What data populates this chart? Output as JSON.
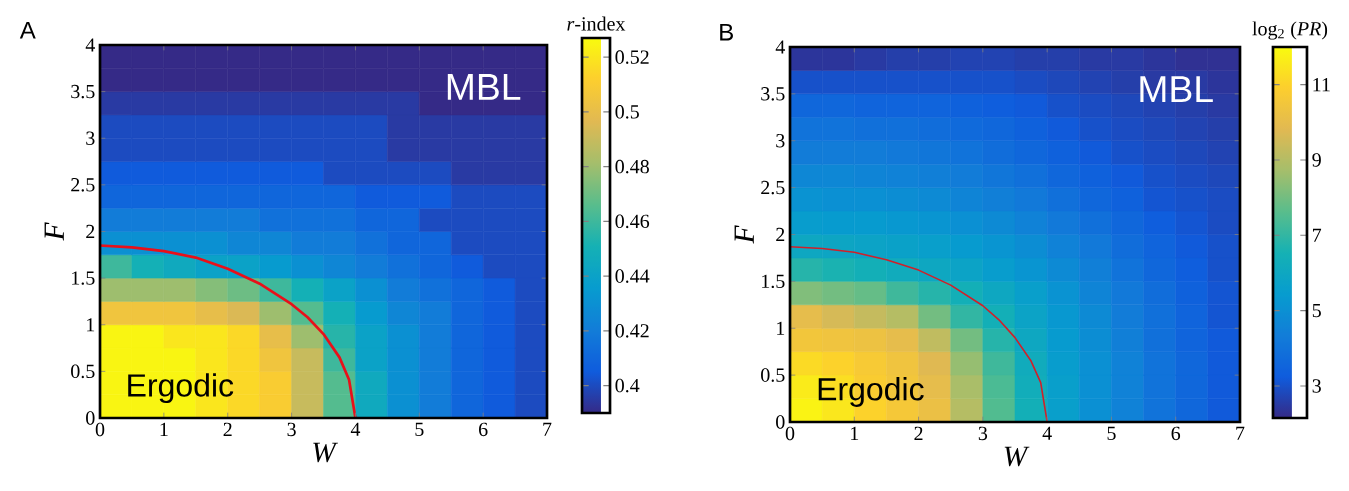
{
  "chart_data": [
    {
      "type": "heatmap",
      "title": "A",
      "xlabel": "W",
      "ylabel": "F",
      "clabel": "*r*-index",
      "xlim": [
        0,
        7
      ],
      "xticks": [
        0,
        1,
        2,
        3,
        4,
        5,
        6,
        7
      ],
      "ylim": [
        0,
        4
      ],
      "yticks": [
        0,
        0.5,
        1,
        1.5,
        2,
        2.5,
        3,
        3.5,
        4
      ],
      "clim": [
        0.39,
        0.527
      ],
      "cticks": [
        0.4,
        0.42,
        0.44,
        0.46,
        0.48,
        0.5,
        0.52
      ],
      "cells": [
        [
          0.39,
          0.39,
          0.39,
          0.39,
          0.39,
          0.39,
          0.39,
          0.39,
          0.39,
          0.39,
          0.39,
          0.39,
          0.39,
          0.39
        ],
        [
          0.39,
          0.39,
          0.39,
          0.39,
          0.39,
          0.39,
          0.39,
          0.39,
          0.39,
          0.39,
          0.39,
          0.39,
          0.39,
          0.39
        ],
        [
          0.395,
          0.395,
          0.395,
          0.395,
          0.395,
          0.395,
          0.395,
          0.395,
          0.395,
          0.395,
          0.39,
          0.39,
          0.39,
          0.39
        ],
        [
          0.4,
          0.4,
          0.4,
          0.4,
          0.4,
          0.4,
          0.4,
          0.4,
          0.4,
          0.395,
          0.395,
          0.395,
          0.395,
          0.395
        ],
        [
          0.4,
          0.4,
          0.4,
          0.4,
          0.4,
          0.4,
          0.4,
          0.4,
          0.4,
          0.395,
          0.395,
          0.395,
          0.395,
          0.395
        ],
        [
          0.405,
          0.405,
          0.405,
          0.405,
          0.405,
          0.405,
          0.405,
          0.4,
          0.4,
          0.4,
          0.4,
          0.395,
          0.395,
          0.395
        ],
        [
          0.41,
          0.41,
          0.41,
          0.41,
          0.41,
          0.41,
          0.41,
          0.41,
          0.405,
          0.405,
          0.405,
          0.4,
          0.4,
          0.4
        ],
        [
          0.42,
          0.42,
          0.42,
          0.42,
          0.42,
          0.415,
          0.415,
          0.415,
          0.41,
          0.41,
          0.4,
          0.4,
          0.4,
          0.4
        ],
        [
          0.43,
          0.43,
          0.43,
          0.43,
          0.425,
          0.425,
          0.42,
          0.42,
          0.415,
          0.41,
          0.41,
          0.4,
          0.4,
          0.4
        ],
        [
          0.46,
          0.45,
          0.445,
          0.44,
          0.44,
          0.435,
          0.43,
          0.425,
          0.42,
          0.415,
          0.41,
          0.405,
          0.4,
          0.4
        ],
        [
          0.48,
          0.48,
          0.48,
          0.475,
          0.47,
          0.46,
          0.45,
          0.44,
          0.43,
          0.42,
          0.415,
          0.41,
          0.405,
          0.4
        ],
        [
          0.505,
          0.505,
          0.505,
          0.5,
          0.495,
          0.48,
          0.465,
          0.45,
          0.435,
          0.425,
          0.42,
          0.41,
          0.405,
          0.4
        ],
        [
          0.525,
          0.525,
          0.52,
          0.52,
          0.515,
          0.5,
          0.48,
          0.455,
          0.44,
          0.43,
          0.42,
          0.41,
          0.405,
          0.4
        ],
        [
          0.525,
          0.525,
          0.525,
          0.52,
          0.515,
          0.505,
          0.49,
          0.46,
          0.44,
          0.43,
          0.42,
          0.41,
          0.405,
          0.4
        ],
        [
          0.525,
          0.525,
          0.525,
          0.52,
          0.515,
          0.51,
          0.49,
          0.465,
          0.445,
          0.43,
          0.42,
          0.41,
          0.405,
          0.4
        ],
        [
          0.525,
          0.525,
          0.525,
          0.52,
          0.515,
          0.51,
          0.49,
          0.465,
          0.445,
          0.43,
          0.42,
          0.41,
          0.405,
          0.4
        ]
      ],
      "series": [
        {
          "type": "line",
          "color": "#e8101a",
          "x": [
            0,
            0.5,
            1,
            1.5,
            2,
            2.5,
            3,
            3.25,
            3.5,
            3.75,
            3.9,
            4
          ],
          "values": [
            1.85,
            1.83,
            1.79,
            1.72,
            1.6,
            1.44,
            1.22,
            1.08,
            0.9,
            0.65,
            0.41,
            0
          ]
        }
      ],
      "annotations": [
        "MBL",
        "Ergodic"
      ]
    },
    {
      "type": "heatmap",
      "title": "B",
      "xlabel": "W",
      "ylabel": "F",
      "clabel": "log$_{2}$ (*PR*)",
      "xlim": [
        0,
        7
      ],
      "xticks": [
        0,
        1,
        2,
        3,
        4,
        5,
        6,
        7
      ],
      "ylim": [
        0,
        4
      ],
      "yticks": [
        0,
        0.5,
        1,
        1.5,
        2,
        2.5,
        3,
        3.5,
        4
      ],
      "clim": [
        2.15,
        12
      ],
      "cticks": [
        3,
        5,
        7,
        9,
        11
      ],
      "cells": [
        [
          2.4,
          2.4,
          2.5,
          2.6,
          2.6,
          2.7,
          2.7,
          2.6,
          2.6,
          2.5,
          2.5,
          2.4,
          2.3,
          2.3
        ],
        [
          3.0,
          3.0,
          3.0,
          3.0,
          3.0,
          3.0,
          3.0,
          2.9,
          2.8,
          2.7,
          2.6,
          2.5,
          2.5,
          2.4
        ],
        [
          3.6,
          3.6,
          3.5,
          3.5,
          3.5,
          3.4,
          3.3,
          3.2,
          3.0,
          2.9,
          2.8,
          2.7,
          2.6,
          2.5
        ],
        [
          4.0,
          4.0,
          3.9,
          3.9,
          3.8,
          3.7,
          3.6,
          3.4,
          3.2,
          3.0,
          2.9,
          2.8,
          2.7,
          2.6
        ],
        [
          4.3,
          4.3,
          4.3,
          4.2,
          4.1,
          4.0,
          3.8,
          3.6,
          3.4,
          3.2,
          3.0,
          2.9,
          2.8,
          2.7
        ],
        [
          4.7,
          4.7,
          4.6,
          4.5,
          4.4,
          4.3,
          4.1,
          3.9,
          3.6,
          3.4,
          3.2,
          3.0,
          2.9,
          2.8
        ],
        [
          5.1,
          5.0,
          5.0,
          4.9,
          4.8,
          4.6,
          4.4,
          4.2,
          3.9,
          3.6,
          3.4,
          3.1,
          3.0,
          2.9
        ],
        [
          5.5,
          5.4,
          5.4,
          5.3,
          5.2,
          5.0,
          4.8,
          4.5,
          4.2,
          3.9,
          3.6,
          3.3,
          3.1,
          2.9
        ],
        [
          6.0,
          5.9,
          5.8,
          5.7,
          5.6,
          5.4,
          5.2,
          4.9,
          4.5,
          4.2,
          3.8,
          3.5,
          3.2,
          3.0
        ],
        [
          6.8,
          6.6,
          6.4,
          6.2,
          6.0,
          5.8,
          5.5,
          5.2,
          4.8,
          4.4,
          4.0,
          3.6,
          3.3,
          3.0
        ],
        [
          8.2,
          8.0,
          7.8,
          7.2,
          6.8,
          6.4,
          6.0,
          5.6,
          5.1,
          4.6,
          4.2,
          3.8,
          3.4,
          3.1
        ],
        [
          10.0,
          9.6,
          9.3,
          9.0,
          8.0,
          7.0,
          6.4,
          5.8,
          5.3,
          4.8,
          4.3,
          3.9,
          3.5,
          3.1
        ],
        [
          10.5,
          10.4,
          10.3,
          10.0,
          9.2,
          8.0,
          6.8,
          6.0,
          5.4,
          4.9,
          4.4,
          3.9,
          3.5,
          3.2
        ],
        [
          11.2,
          11.0,
          10.7,
          10.4,
          9.8,
          8.5,
          7.2,
          6.2,
          5.5,
          5.0,
          4.5,
          4.0,
          3.6,
          3.2
        ],
        [
          11.6,
          11.3,
          10.8,
          10.5,
          10.0,
          8.8,
          7.4,
          6.3,
          5.6,
          5.0,
          4.5,
          4.0,
          3.6,
          3.2
        ],
        [
          11.8,
          11.5,
          11.0,
          10.6,
          10.2,
          9.0,
          7.5,
          6.4,
          5.6,
          5.0,
          4.5,
          4.0,
          3.6,
          3.2
        ]
      ],
      "series": [
        {
          "type": "line",
          "color": "#d0202a",
          "x": [
            0,
            0.5,
            1,
            1.5,
            2,
            2.5,
            3,
            3.25,
            3.5,
            3.75,
            3.9,
            4
          ],
          "values": [
            1.87,
            1.85,
            1.81,
            1.73,
            1.62,
            1.46,
            1.24,
            1.09,
            0.9,
            0.65,
            0.42,
            0
          ]
        }
      ],
      "annotations": [
        "MBL",
        "Ergodic"
      ]
    }
  ]
}
